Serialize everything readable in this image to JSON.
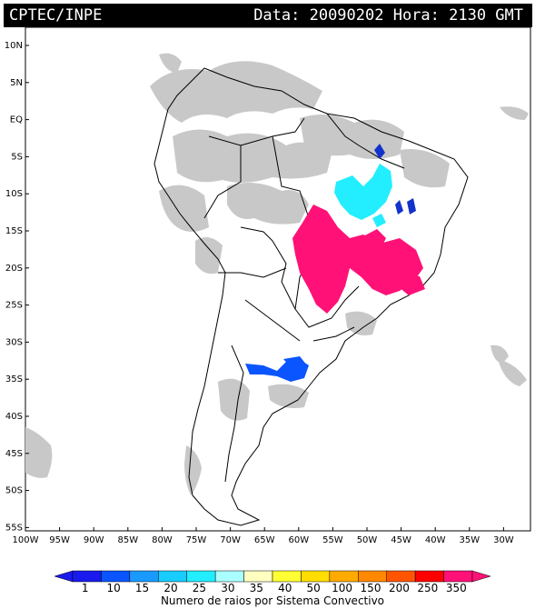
{
  "header": {
    "source": "CPTEC/INPE",
    "datetime": "Data: 20090202 Hora: 2130 GMT"
  },
  "map": {
    "lon_range": [
      -100,
      -25
    ],
    "lat_range": [
      -56,
      14
    ],
    "lat_labels": [
      "10N",
      "5N",
      "EQ",
      "5S",
      "10S",
      "15S",
      "20S",
      "25S",
      "30S",
      "35S",
      "40S",
      "45S",
      "50S",
      "55S"
    ],
    "lon_labels": [
      "100W",
      "95W",
      "90W",
      "85W",
      "80W",
      "75W",
      "70W",
      "65W",
      "60W",
      "55W",
      "50W",
      "45W",
      "40W",
      "35W",
      "30W"
    ],
    "colors": {
      "cloud": "#c8c8c8",
      "magenta": "#ff1177",
      "cyan": "#22ddff",
      "blue": "#0044ee",
      "dark_blue": "#1133cc"
    }
  },
  "colorbar": {
    "labels": [
      "1",
      "10",
      "15",
      "20",
      "25",
      "30",
      "35",
      "40",
      "50",
      "100",
      "150",
      "200",
      "250",
      "350"
    ],
    "colors": [
      "#1a1aee",
      "#0a55ff",
      "#1a9aff",
      "#19ccff",
      "#22eeff",
      "#aaffff",
      "#ffffc0",
      "#ffff33",
      "#ffdd00",
      "#ffaa00",
      "#ff8800",
      "#ff5500",
      "#ff0000",
      "#ff1177"
    ],
    "title": "Numero de raios por Sistema Convectivo"
  }
}
